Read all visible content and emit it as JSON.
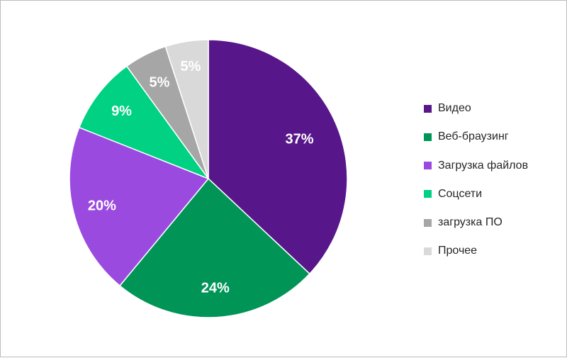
{
  "chart_data": {
    "type": "pie",
    "title": "",
    "categories": [
      "Видео",
      "Веб-браузинг",
      "Загрузка файлов",
      "Соцсети",
      "загрузка ПО",
      "Прочее"
    ],
    "values": [
      37,
      24,
      20,
      9,
      5,
      5
    ],
    "labels": [
      "37%",
      "24%",
      "20%",
      "9%",
      "5%",
      "5%"
    ],
    "colors": [
      "#57178a",
      "#009557",
      "#9b4ae0",
      "#00d182",
      "#a6a6a6",
      "#d9d9d9"
    ],
    "start_angle": "12 o'clock",
    "direction": "clockwise",
    "legend_position": "right"
  }
}
